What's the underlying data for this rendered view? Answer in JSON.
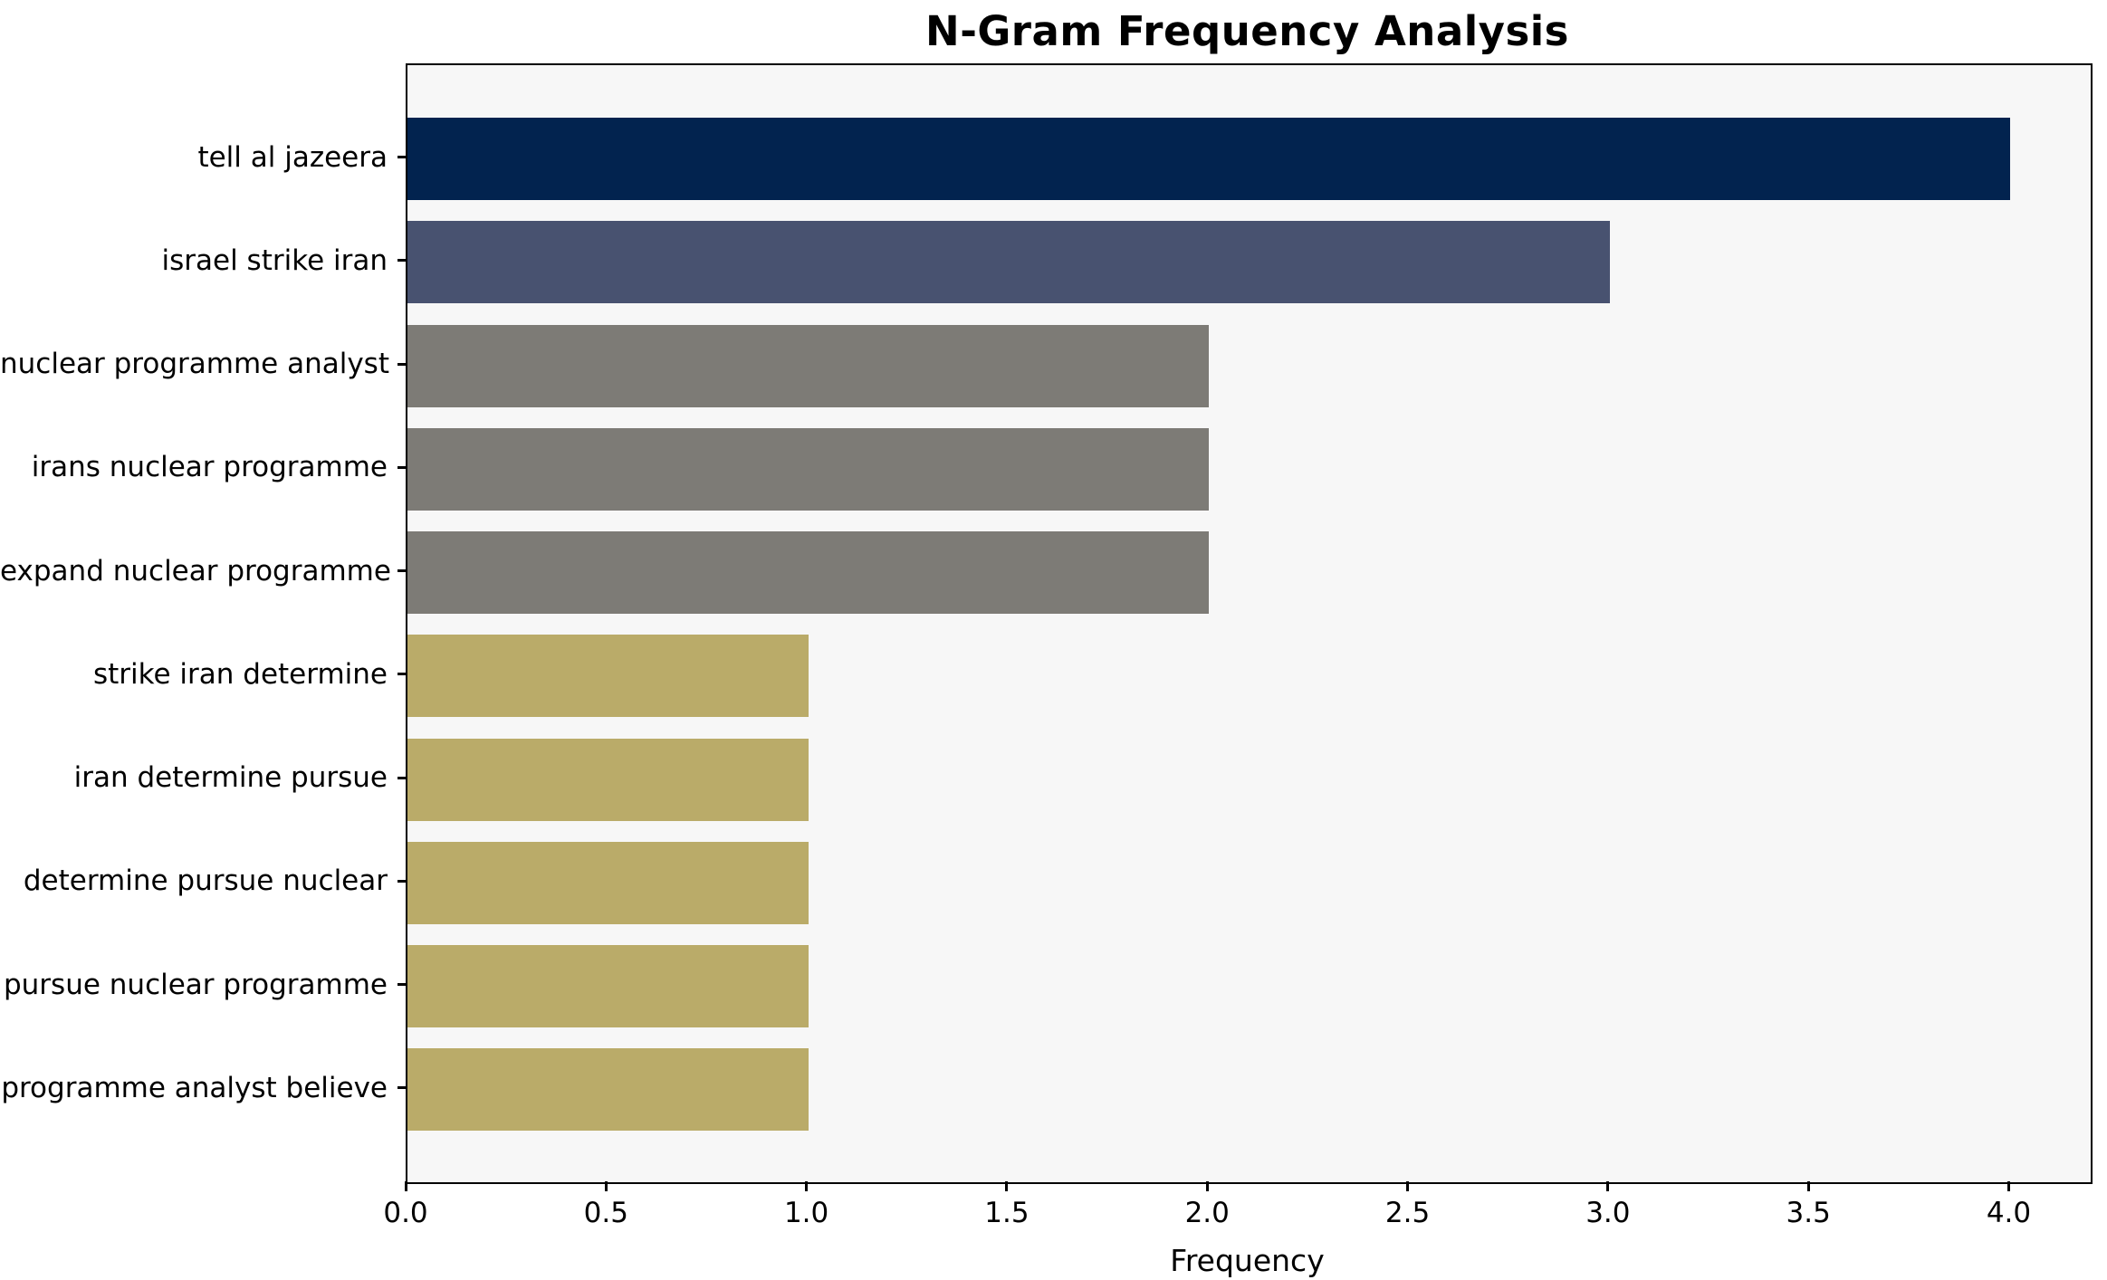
{
  "chart_data": {
    "type": "bar",
    "orientation": "horizontal",
    "title": "N-Gram Frequency Analysis",
    "xlabel": "Frequency",
    "ylabel": "",
    "categories": [
      "tell al jazeera",
      "israel strike iran",
      "nuclear programme analyst",
      "irans nuclear programme",
      "expand nuclear programme",
      "strike iran determine",
      "iran determine pursue",
      "determine pursue nuclear",
      "pursue nuclear programme",
      "programme analyst believe"
    ],
    "values": [
      4,
      3,
      2,
      2,
      2,
      1,
      1,
      1,
      1,
      1
    ],
    "bar_colors": [
      "#02234f",
      "#485270",
      "#7d7b76",
      "#7d7b76",
      "#7d7b76",
      "#baab69",
      "#baab69",
      "#baab69",
      "#baab69",
      "#baab69"
    ],
    "xlim": [
      0,
      4.2
    ],
    "x_ticks": [
      "0.0",
      "0.5",
      "1.0",
      "1.5",
      "2.0",
      "2.5",
      "3.0",
      "3.5",
      "4.0"
    ],
    "grid": false,
    "bar_height_frac": 0.8,
    "plot_bg": "#f7f7f7",
    "figure_bg": "#ffffff",
    "text_color": "#000000",
    "legend": "none"
  }
}
